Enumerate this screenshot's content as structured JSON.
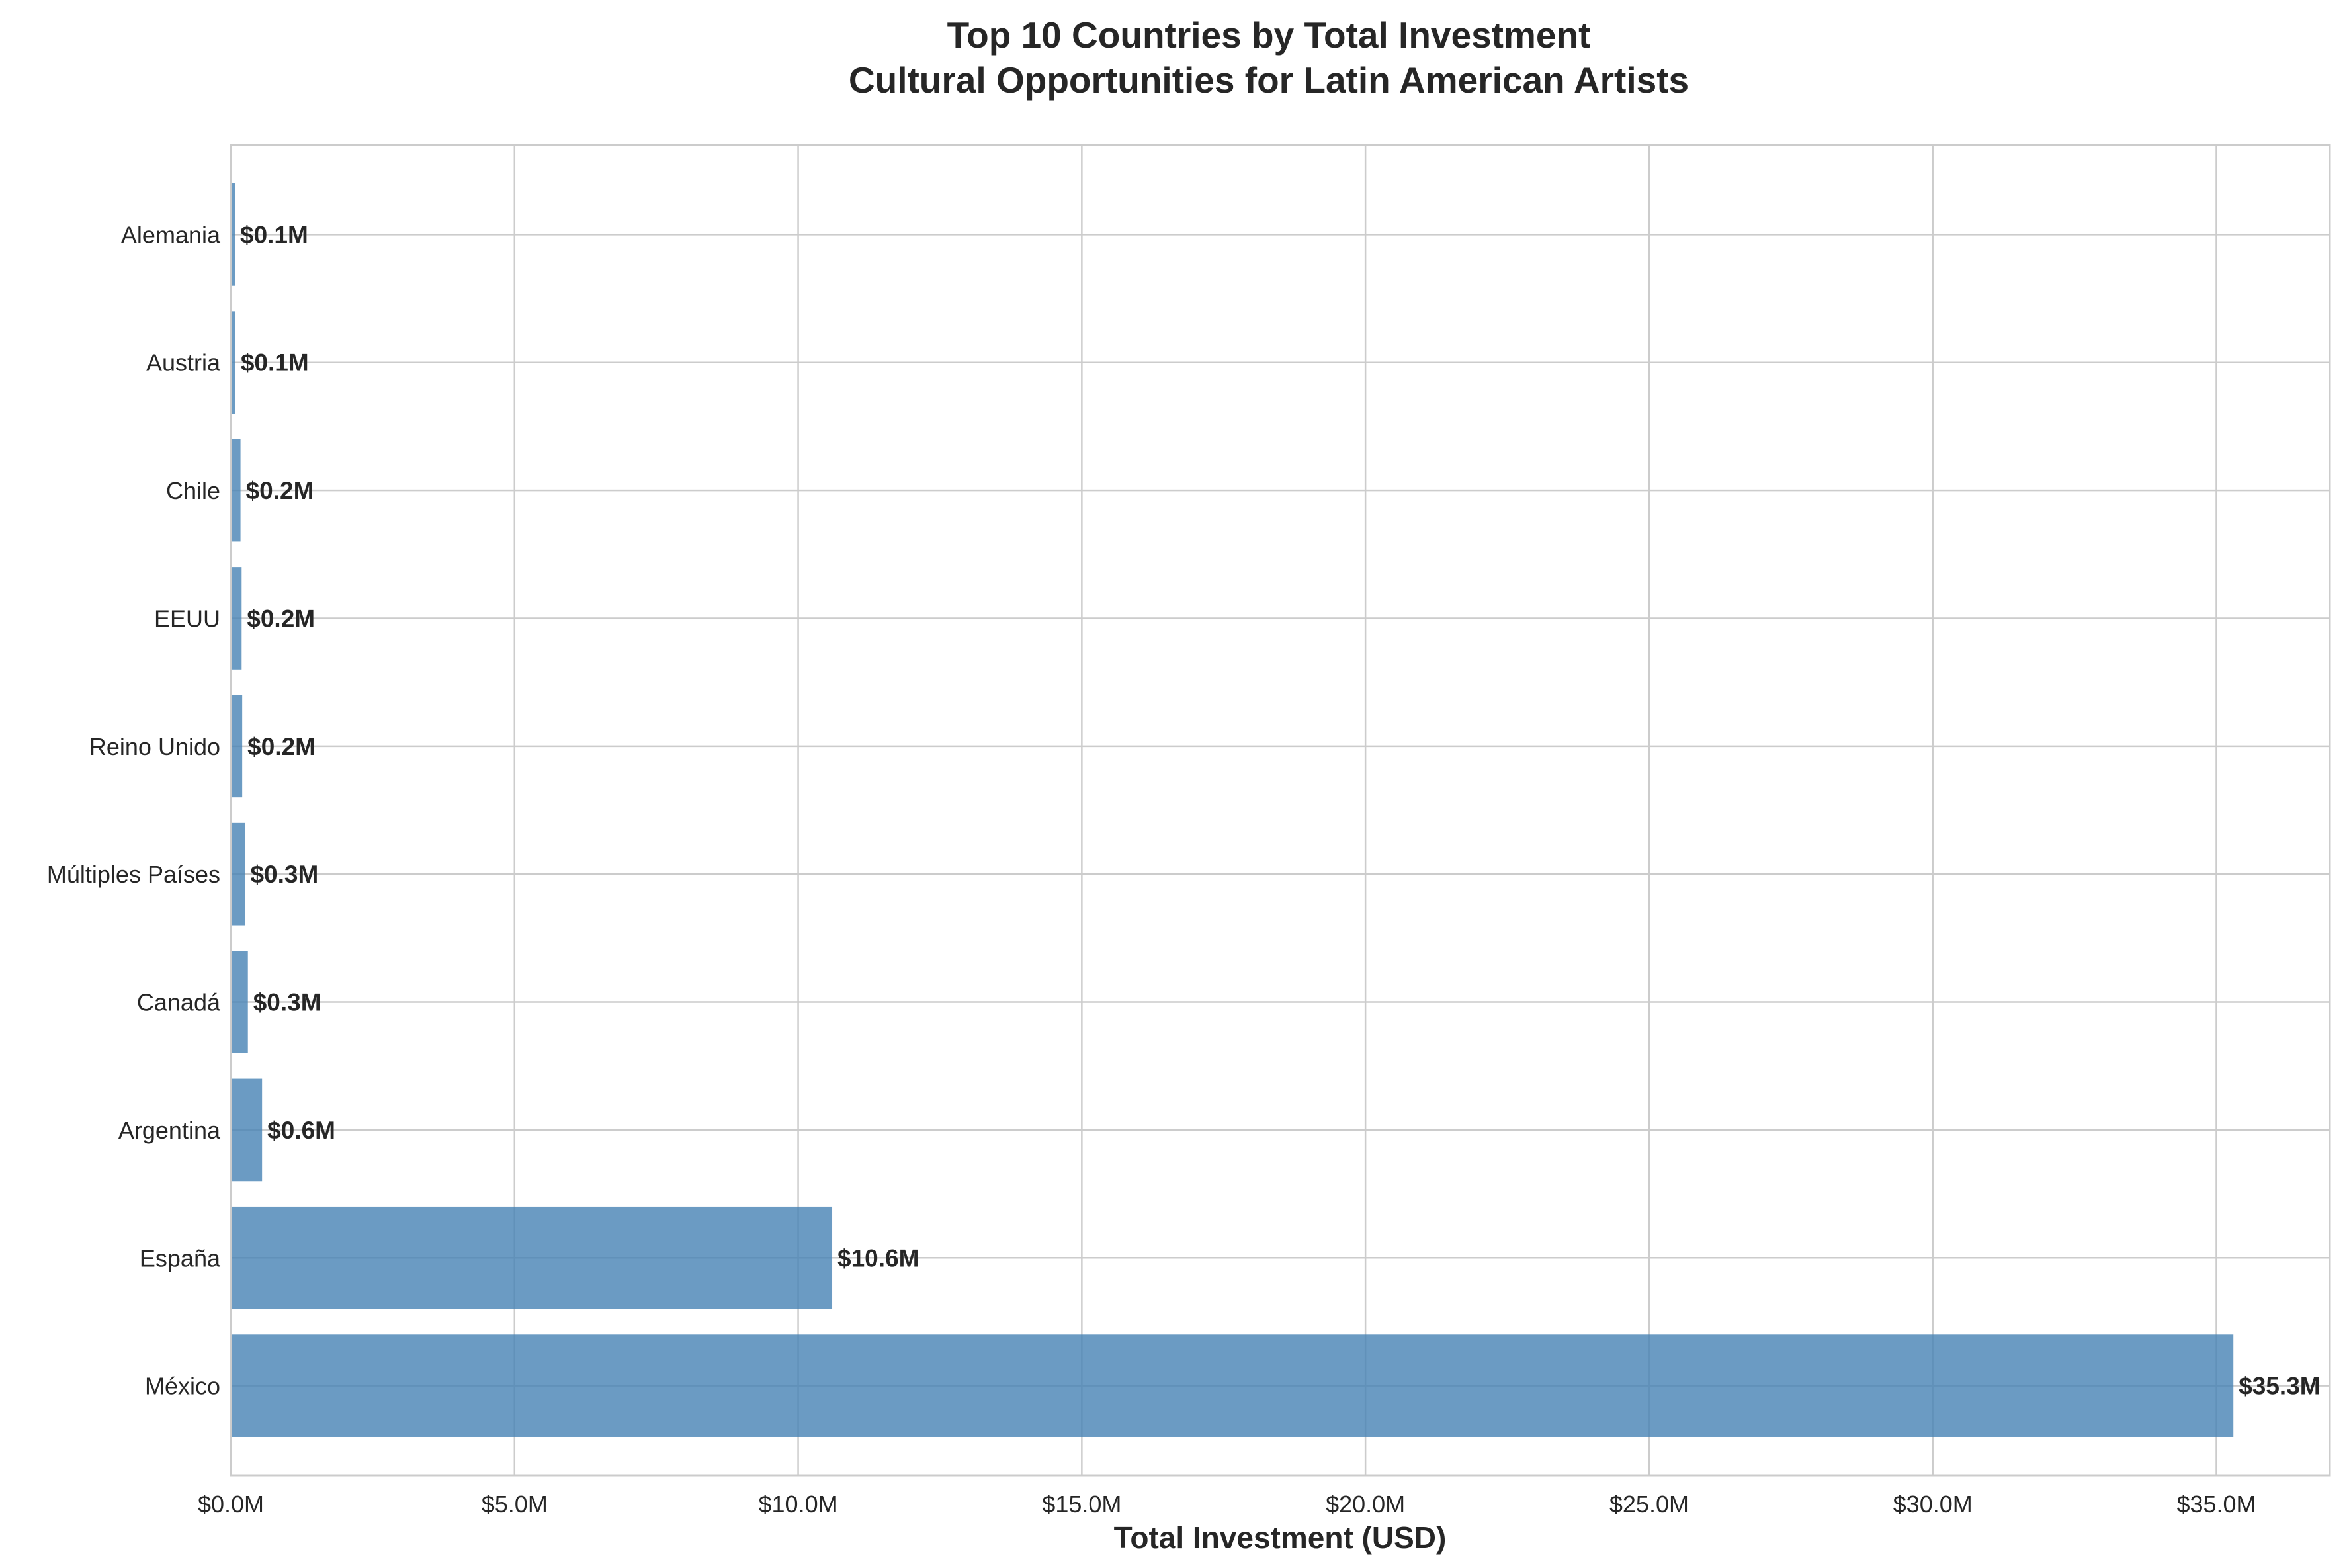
{
  "colors": {
    "bar": "#4682b4",
    "grid": "#cccccc",
    "frame": "#cccccc",
    "text": "#262626",
    "background": "#ffffff"
  },
  "chart_data": {
    "type": "bar",
    "orientation": "horizontal",
    "title": "Top 10 Countries by Total Investment",
    "subtitle": "Cultural Opportunities for Latin American Artists",
    "xlabel": "Total Investment (USD)",
    "ylabel": "",
    "xlim": [
      0,
      37.0
    ],
    "x_unit": "million USD",
    "grid": true,
    "legend": "none",
    "categories": [
      "México",
      "España",
      "Argentina",
      "Canadá",
      "Múltiples Países",
      "Reino Unido",
      "EEUU",
      "Chile",
      "Austria",
      "Alemania"
    ],
    "values": [
      35.3,
      10.6,
      0.55,
      0.3,
      0.25,
      0.2,
      0.19,
      0.17,
      0.08,
      0.07
    ],
    "data_labels": [
      "$35.3M",
      "$10.6M",
      "$0.6M",
      "$0.3M",
      "$0.3M",
      "$0.2M",
      "$0.2M",
      "$0.2M",
      "$0.1M",
      "$0.1M"
    ],
    "x_ticks": [
      0,
      5,
      10,
      15,
      20,
      25,
      30,
      35
    ],
    "x_tick_labels": [
      "$0.0M",
      "$5.0M",
      "$10.0M",
      "$15.0M",
      "$20.0M",
      "$25.0M",
      "$30.0M",
      "$35.0M"
    ]
  }
}
